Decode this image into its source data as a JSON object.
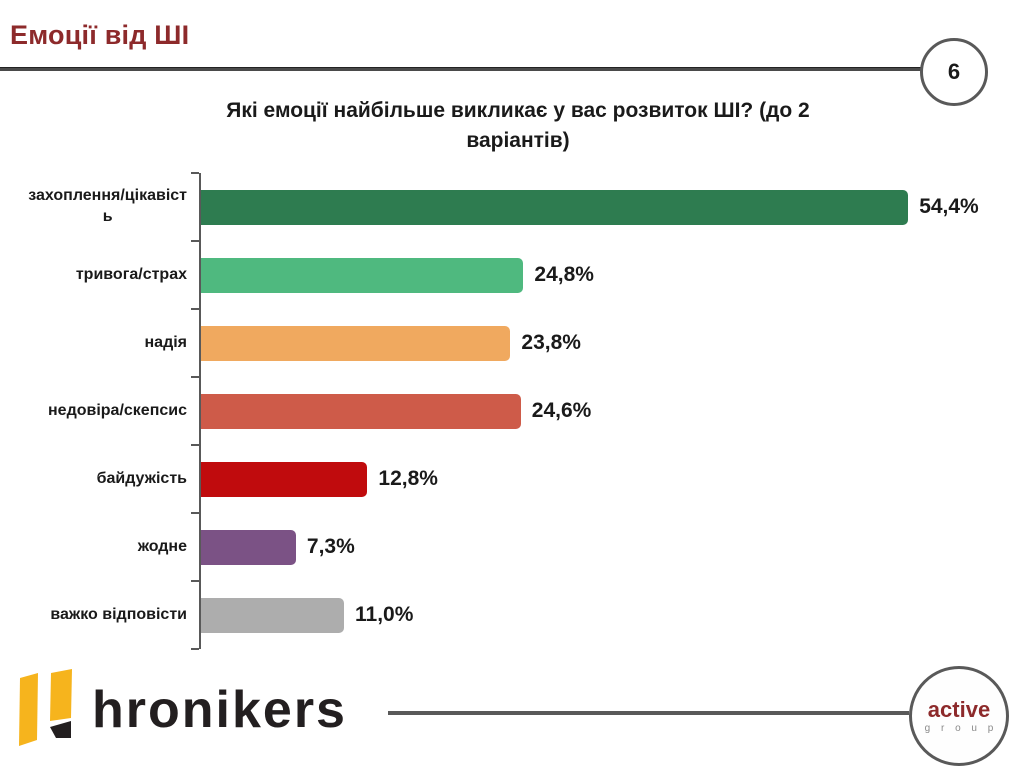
{
  "slide_title": "Емоції від ШІ",
  "page_number": "6",
  "chart_title_display": "Які емоції найбільше викликає у вас розвиток ШІ? (до 2\nваріантів)",
  "chart_data": {
    "type": "bar",
    "orientation": "horizontal",
    "title": "Які емоції найбільше викликає у вас розвиток ШІ? (до 2 варіантів)",
    "categories": [
      "захоплення/цікавість",
      "тривога/страх",
      "надія",
      "недовіра/скепсис",
      "байдужість",
      "жодне",
      "важко відповісти"
    ],
    "display_labels": [
      "захоплення/цікавіст\nь",
      "тривога/страх",
      "надія",
      "недовіра/скепсис",
      "байдужість",
      "жодне",
      "важко відповісти"
    ],
    "values": [
      54.4,
      24.8,
      23.8,
      24.6,
      12.8,
      7.3,
      11.0
    ],
    "value_labels": [
      "54,4%",
      "24,8%",
      "23,8%",
      "24,6%",
      "12,8%",
      "7,3%",
      "11,0%"
    ],
    "colors": [
      "#2E7C50",
      "#4FB97F",
      "#F0A95F",
      "#CE5B49",
      "#C00B0D",
      "#7B5285",
      "#ADADAD"
    ],
    "unit": "%",
    "xlim": [
      0,
      60
    ],
    "grid": false,
    "legend": false,
    "bar_label_position": "outside-end"
  },
  "footer": {
    "brand_name": "hronikers",
    "partner_name_line1": "active",
    "partner_name_line2": "g r o u p"
  },
  "colors": {
    "slide_title": "#8D2A2B",
    "accent_line": "#4a4a4a",
    "axis": "#595959",
    "brand_yellow": "#F6B41D",
    "brand_black": "#231F20",
    "partner_red": "#8D2A2B"
  }
}
